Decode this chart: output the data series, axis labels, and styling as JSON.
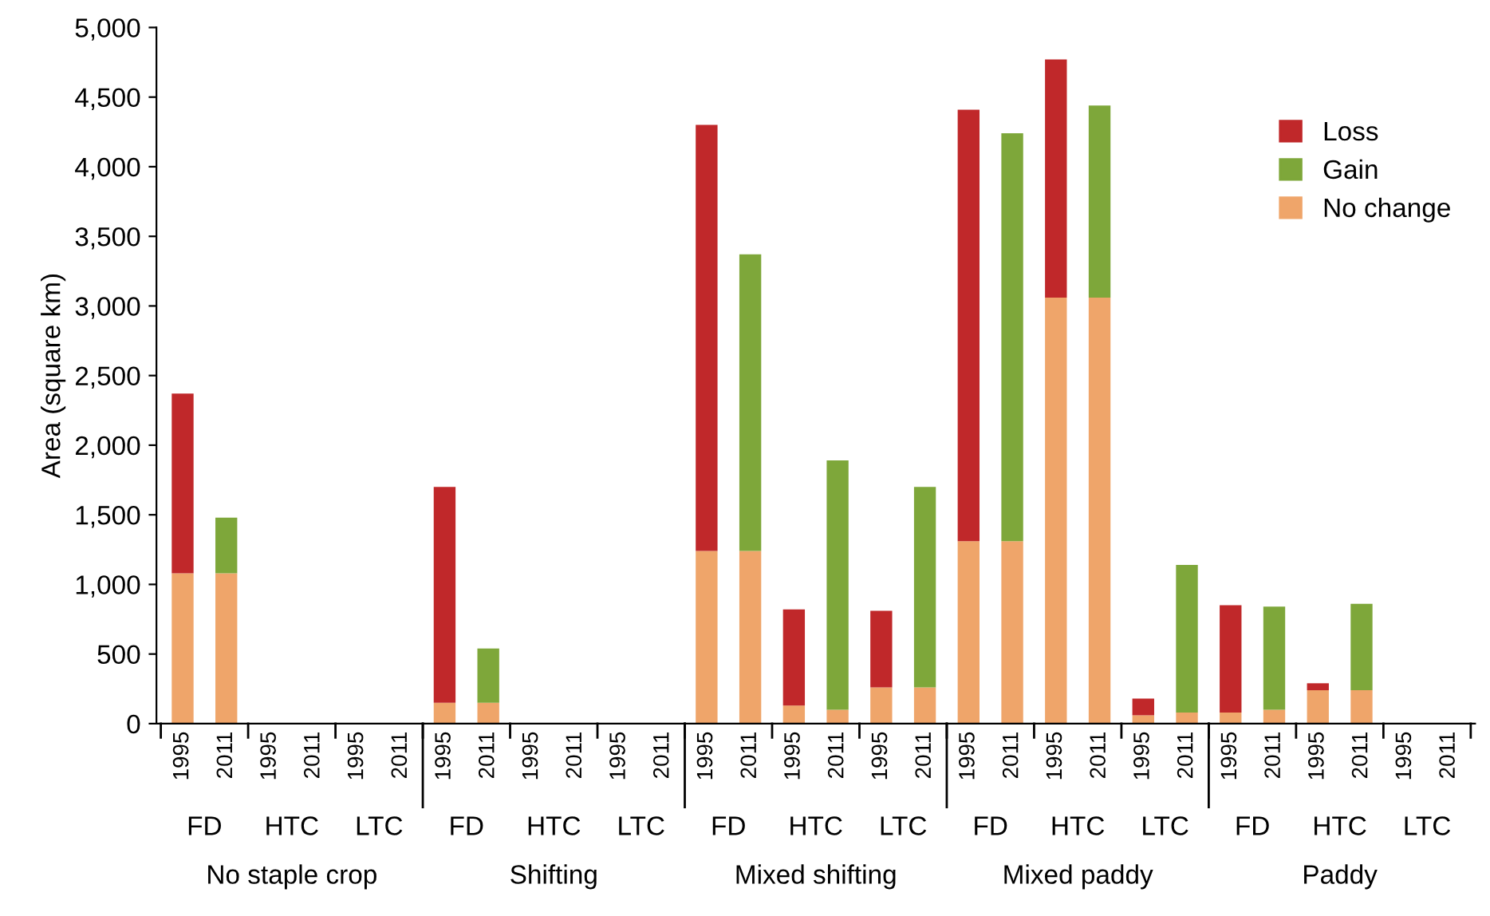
{
  "chart_data": {
    "type": "bar",
    "stacked": true,
    "ylabel": "Area (square km)",
    "categories": [
      "1995",
      "2011",
      "1995",
      "2011",
      "1995",
      "2011",
      "1995",
      "2011",
      "1995",
      "2011",
      "1995",
      "2011",
      "1995",
      "2011",
      "1995",
      "2011",
      "1995",
      "2011",
      "1995",
      "2011",
      "1995",
      "2011",
      "1995",
      "2011",
      "1995",
      "2011",
      "1995",
      "2011",
      "1995",
      "2011"
    ],
    "series": [
      {
        "name": "No change",
        "color": "#efa56a",
        "values": [
          1080,
          1080,
          0,
          0,
          0,
          0,
          150,
          150,
          0,
          0,
          0,
          0,
          1240,
          1240,
          130,
          100,
          260,
          260,
          1310,
          1310,
          3060,
          3060,
          60,
          80,
          80,
          100,
          240,
          240,
          0,
          0
        ]
      },
      {
        "name": "Loss",
        "color": "#c0282a",
        "values": [
          1290,
          null,
          0,
          null,
          0,
          null,
          1550,
          null,
          0,
          null,
          0,
          null,
          3060,
          null,
          690,
          null,
          550,
          null,
          3100,
          null,
          1710,
          null,
          120,
          null,
          770,
          null,
          50,
          null,
          0,
          null
        ]
      },
      {
        "name": "Gain",
        "color": "#7ea73a",
        "values": [
          null,
          400,
          null,
          0,
          null,
          0,
          null,
          390,
          null,
          0,
          null,
          0,
          null,
          2130,
          null,
          1790,
          null,
          1440,
          null,
          2930,
          null,
          1380,
          null,
          1060,
          null,
          740,
          null,
          620,
          null,
          0
        ]
      }
    ],
    "ylim": [
      0,
      5000
    ],
    "yticks": [
      {
        "value": 0,
        "label": "0"
      },
      {
        "value": 500,
        "label": "500"
      },
      {
        "value": 1000,
        "label": "1,000"
      },
      {
        "value": 1500,
        "label": "1,500"
      },
      {
        "value": 2000,
        "label": "2,000"
      },
      {
        "value": 2500,
        "label": "2,500"
      },
      {
        "value": 3000,
        "label": "3,000"
      },
      {
        "value": 3500,
        "label": "3,500"
      },
      {
        "value": 4000,
        "label": "4,000"
      },
      {
        "value": 4500,
        "label": "4,500"
      },
      {
        "value": 5000,
        "label": "5,000"
      }
    ],
    "grid": false,
    "legend": "top right",
    "annotations": [
      "FD",
      "HTC",
      "LTC",
      "FD",
      "HTC",
      "LTC",
      "FD",
      "HTC",
      "LTC",
      "FD",
      "HTC",
      "LTC",
      "FD",
      "HTC",
      "LTC",
      "No staple crop",
      "Shifting",
      "Mixed shifting",
      "Mixed paddy",
      "Paddy"
    ]
  }
}
